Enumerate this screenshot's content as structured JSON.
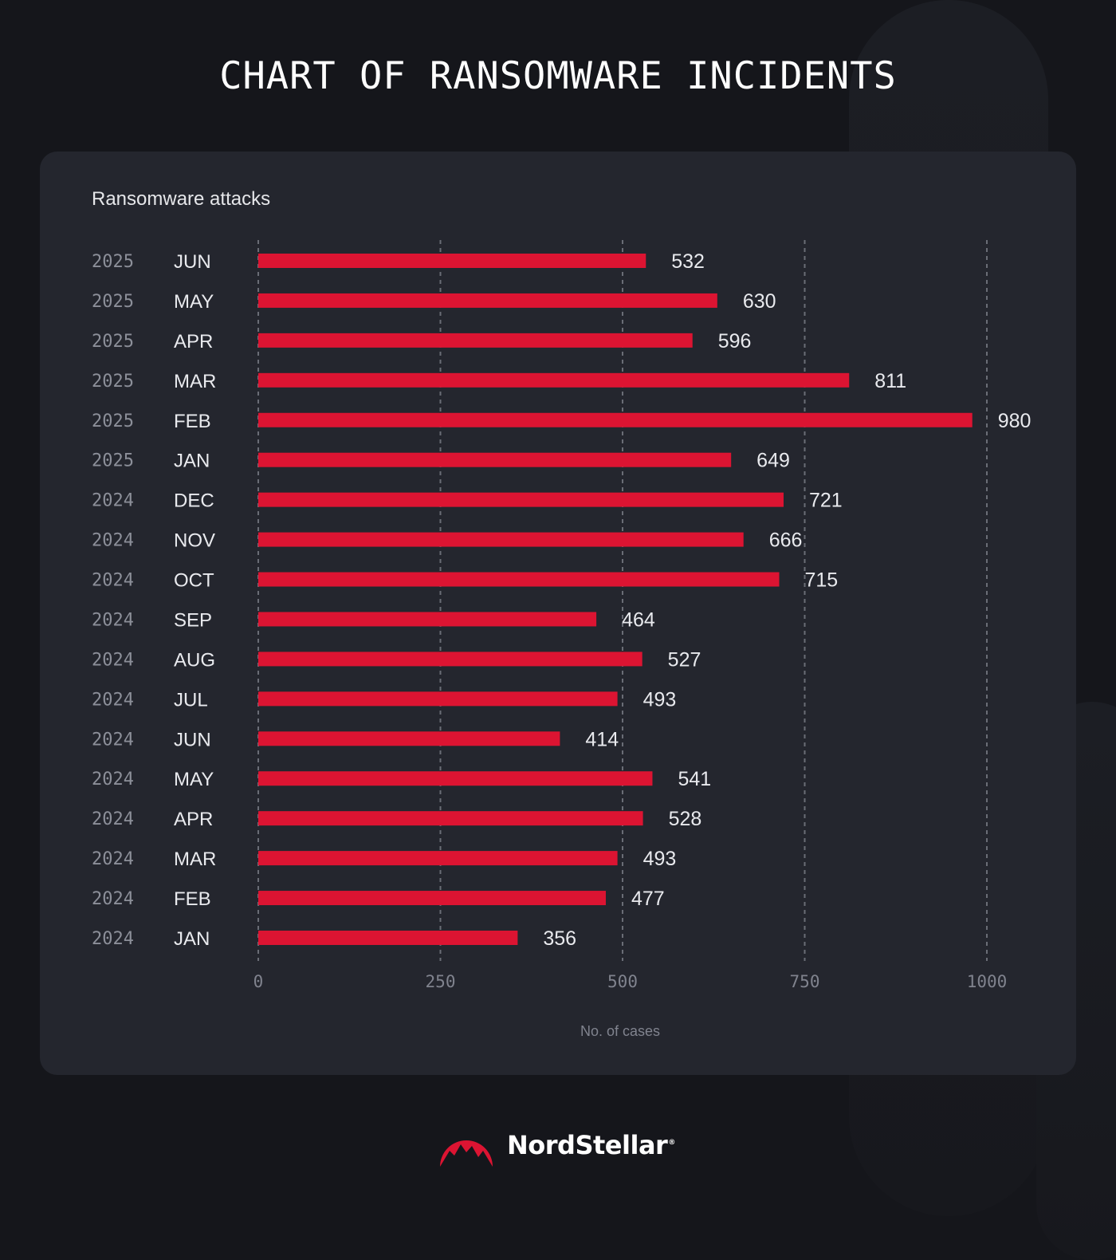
{
  "title": "CHART OF RANSOMWARE INCIDENTS",
  "brand": {
    "name": "NordStellar",
    "reg_mark": "®",
    "logo_icon": "mountain-peak-icon"
  },
  "colors": {
    "background": "#15161b",
    "card": "#24262e",
    "bar": "#dc1432",
    "grid": "#6a6d76"
  },
  "chart_data": {
    "type": "bar",
    "orientation": "horizontal",
    "title": "Ransomware attacks",
    "xlabel": "No. of cases",
    "ylabel": "",
    "xlim": [
      0,
      1000
    ],
    "x_ticks": [
      0,
      250,
      500,
      750,
      1000
    ],
    "grid": "vertical dashed",
    "categories": [
      {
        "year": "2025",
        "month": "JUN"
      },
      {
        "year": "2025",
        "month": "MAY"
      },
      {
        "year": "2025",
        "month": "APR"
      },
      {
        "year": "2025",
        "month": "MAR"
      },
      {
        "year": "2025",
        "month": "FEB"
      },
      {
        "year": "2025",
        "month": "JAN"
      },
      {
        "year": "2024",
        "month": "DEC"
      },
      {
        "year": "2024",
        "month": "NOV"
      },
      {
        "year": "2024",
        "month": "OCT"
      },
      {
        "year": "2024",
        "month": "SEP"
      },
      {
        "year": "2024",
        "month": "AUG"
      },
      {
        "year": "2024",
        "month": "JUL"
      },
      {
        "year": "2024",
        "month": "JUN"
      },
      {
        "year": "2024",
        "month": "MAY"
      },
      {
        "year": "2024",
        "month": "APR"
      },
      {
        "year": "2024",
        "month": "MAR"
      },
      {
        "year": "2024",
        "month": "FEB"
      },
      {
        "year": "2024",
        "month": "JAN"
      }
    ],
    "values": [
      532,
      630,
      596,
      811,
      980,
      649,
      721,
      666,
      715,
      464,
      527,
      493,
      414,
      541,
      528,
      493,
      477,
      356
    ]
  }
}
